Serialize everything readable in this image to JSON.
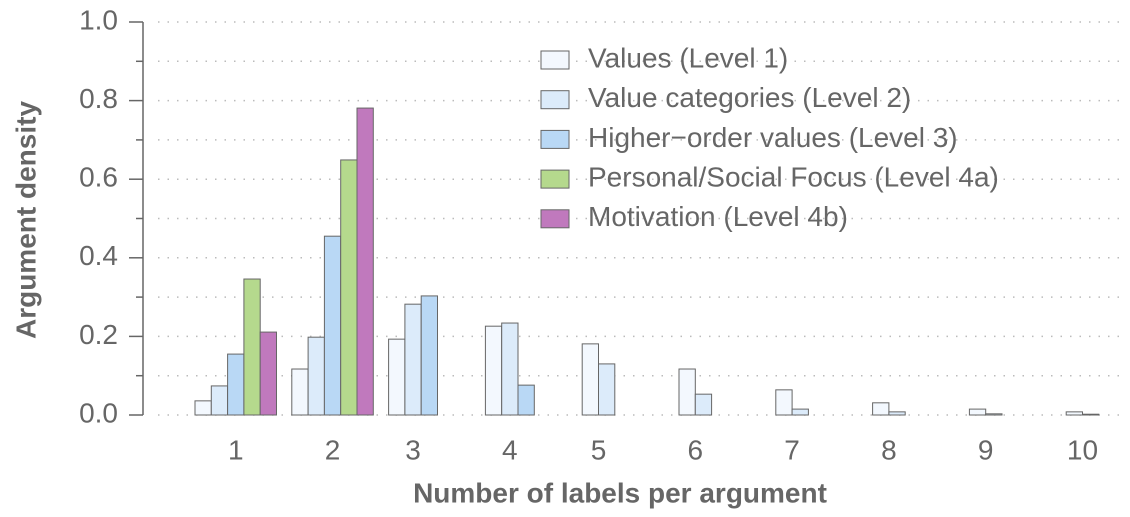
{
  "chart_data": {
    "type": "bar",
    "xlabel": "Number of labels per argument",
    "ylabel": "Argument density",
    "categories": [
      "1",
      "2",
      "3",
      "4",
      "5",
      "6",
      "7",
      "8",
      "9",
      "10"
    ],
    "series": [
      {
        "name": "Values (Level 1)",
        "color": "#f3f8fe",
        "values": [
          0.036,
          0.117,
          0.193,
          0.226,
          0.181,
          0.117,
          0.064,
          0.031,
          0.015,
          0.008
        ]
      },
      {
        "name": "Value categories (Level 2)",
        "color": "#dcebfa",
        "values": [
          0.074,
          0.198,
          0.282,
          0.234,
          0.13,
          0.053,
          0.015,
          0.008,
          0.003,
          0.002
        ]
      },
      {
        "name": "Higher−order values (Level 3)",
        "color": "#b9d8f5",
        "values": [
          0.155,
          0.455,
          0.303,
          0.076,
          null,
          null,
          null,
          null,
          null,
          null
        ]
      },
      {
        "name": "Personal/Social Focus (Level 4a)",
        "color": "#b5d98d",
        "values": [
          0.346,
          0.649,
          null,
          null,
          null,
          null,
          null,
          null,
          null,
          null
        ]
      },
      {
        "name": "Motivation (Level 4b)",
        "color": "#c079bd",
        "values": [
          0.211,
          0.781,
          null,
          null,
          null,
          null,
          null,
          null,
          null,
          null
        ]
      }
    ],
    "ylim": [
      0,
      1
    ],
    "yticks": [
      {
        "value": 0,
        "label": "0.0"
      },
      {
        "value": 0.2,
        "label": "0.2"
      },
      {
        "value": 0.4,
        "label": "0.4"
      },
      {
        "value": 0.6,
        "label": "0.6"
      },
      {
        "value": 0.8,
        "label": "0.8"
      },
      {
        "value": 1,
        "label": "1.0"
      }
    ],
    "yminorticks": [
      0.1,
      0.3,
      0.5,
      0.7,
      0.9
    ],
    "grid": true,
    "legend": "upper right"
  }
}
